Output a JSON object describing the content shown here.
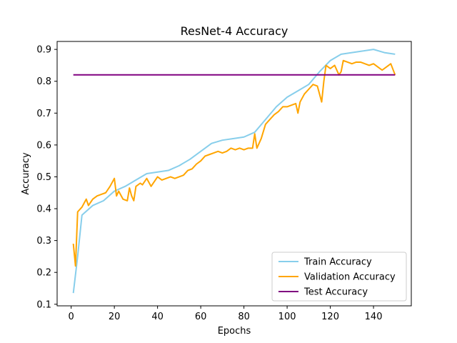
{
  "chart_data": {
    "type": "line",
    "title": "ResNet-4 Accuracy",
    "xlabel": "Epochs",
    "ylabel": "Accuracy",
    "xlim": [
      -6.5,
      157.5
    ],
    "ylim": [
      0.095,
      0.925
    ],
    "xticks": [
      0,
      20,
      40,
      60,
      80,
      100,
      120,
      140
    ],
    "yticks": [
      0.1,
      0.2,
      0.3,
      0.4,
      0.5,
      0.6,
      0.7,
      0.8,
      0.9
    ],
    "legend_position": "lower-right",
    "grid": false,
    "series": [
      {
        "name": "Train Accuracy",
        "color": "#87ceeb",
        "x": [
          1,
          3,
          5,
          10,
          15,
          20,
          25,
          30,
          35,
          40,
          45,
          50,
          55,
          60,
          65,
          70,
          75,
          80,
          85,
          90,
          95,
          100,
          105,
          110,
          115,
          120,
          125,
          130,
          135,
          140,
          145,
          150
        ],
        "y": [
          0.135,
          0.25,
          0.38,
          0.41,
          0.425,
          0.455,
          0.47,
          0.49,
          0.51,
          0.515,
          0.52,
          0.535,
          0.555,
          0.58,
          0.605,
          0.615,
          0.62,
          0.625,
          0.64,
          0.68,
          0.72,
          0.75,
          0.77,
          0.79,
          0.83,
          0.865,
          0.885,
          0.89,
          0.895,
          0.9,
          0.89,
          0.885
        ]
      },
      {
        "name": "Validation Accuracy",
        "color": "#ffa500",
        "x": [
          1,
          2,
          3,
          5,
          7,
          8,
          10,
          12,
          14,
          16,
          18,
          20,
          21,
          22,
          24,
          26,
          27,
          28,
          29,
          30,
          32,
          33,
          35,
          37,
          38,
          40,
          42,
          44,
          46,
          48,
          50,
          52,
          54,
          56,
          58,
          60,
          62,
          64,
          66,
          68,
          70,
          72,
          74,
          76,
          78,
          80,
          82,
          84,
          85,
          86,
          88,
          90,
          92,
          94,
          96,
          98,
          100,
          102,
          104,
          105,
          106,
          108,
          110,
          112,
          114,
          116,
          117,
          118,
          120,
          122,
          124,
          125,
          126,
          128,
          130,
          132,
          134,
          136,
          138,
          140,
          142,
          144,
          146,
          148,
          150
        ],
        "y": [
          0.29,
          0.22,
          0.39,
          0.405,
          0.43,
          0.41,
          0.43,
          0.44,
          0.445,
          0.45,
          0.47,
          0.495,
          0.44,
          0.455,
          0.43,
          0.425,
          0.465,
          0.44,
          0.425,
          0.47,
          0.48,
          0.475,
          0.495,
          0.47,
          0.48,
          0.5,
          0.49,
          0.495,
          0.5,
          0.495,
          0.5,
          0.505,
          0.52,
          0.525,
          0.54,
          0.55,
          0.565,
          0.57,
          0.575,
          0.58,
          0.575,
          0.58,
          0.59,
          0.585,
          0.59,
          0.585,
          0.59,
          0.59,
          0.635,
          0.59,
          0.62,
          0.665,
          0.68,
          0.695,
          0.705,
          0.72,
          0.72,
          0.725,
          0.73,
          0.7,
          0.735,
          0.76,
          0.775,
          0.79,
          0.785,
          0.735,
          0.8,
          0.85,
          0.84,
          0.85,
          0.82,
          0.83,
          0.865,
          0.86,
          0.855,
          0.86,
          0.86,
          0.855,
          0.85,
          0.855,
          0.845,
          0.835,
          0.845,
          0.855,
          0.82
        ]
      },
      {
        "name": "Test Accuracy",
        "color": "#800080",
        "x": [
          1,
          150
        ],
        "y": [
          0.82,
          0.82
        ]
      }
    ]
  }
}
